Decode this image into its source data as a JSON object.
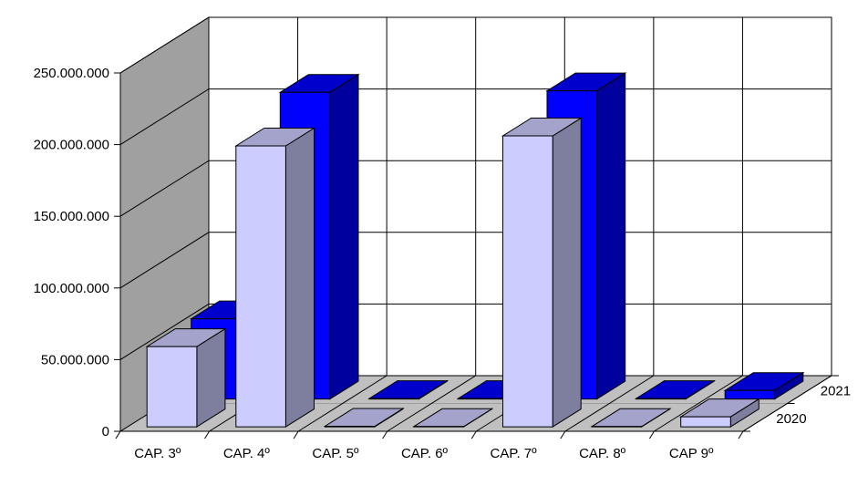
{
  "chart_data": {
    "type": "bar",
    "style": "3d-clustered-depth",
    "title": "",
    "xlabel": "",
    "ylabel": "",
    "categories": [
      "CAP. 3º",
      "CAP. 4º",
      "CAP. 5º",
      "CAP. 6º",
      "CAP. 7º",
      "CAP. 8º",
      "CAP 9º"
    ],
    "y_ticks": [
      "0",
      "50.000.000",
      "100.000.000",
      "150.000.000",
      "200.000.000",
      "250.000.000"
    ],
    "ylim": [
      0,
      250000000
    ],
    "grid": true,
    "series": [
      {
        "name": "2020",
        "color": "#ccccff",
        "values": [
          56000000,
          196000000,
          400000,
          200000,
          203000000,
          200000,
          7000000
        ]
      },
      {
        "name": "2021",
        "color": "#0000ff",
        "values": [
          56000000,
          214000000,
          300000,
          300000,
          215000000,
          300000,
          6000000
        ]
      }
    ]
  }
}
